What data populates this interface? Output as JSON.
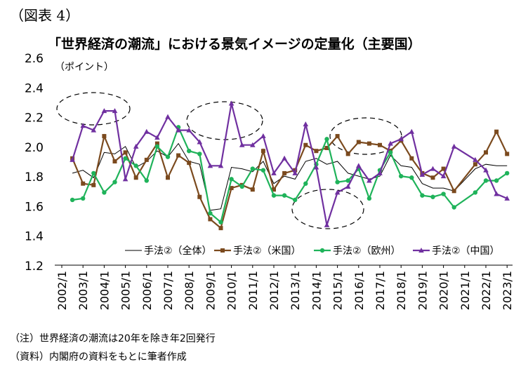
{
  "figure_label": "（図表 4）",
  "notes": {
    "note1": "（注）世界経済の潮流は20年を除き年2回発行",
    "note2": "（資料）内閣府の資料をもとに筆者作成"
  },
  "chart_data": {
    "type": "line",
    "title": "「世界経済の潮流」における景気イメージの定量化（主要国）",
    "ylabel": "（ポイント）",
    "xlabel": "",
    "ylim": [
      1.2,
      2.6
    ],
    "yticks": [
      "1.2",
      "1.4",
      "1.6",
      "1.8",
      "2.0",
      "2.2",
      "2.4",
      "2.6"
    ],
    "categories": [
      "2002/1",
      "2003/1",
      "2004/1",
      "2005/1",
      "2006/1",
      "2007/1",
      "2008/1",
      "2009/1",
      "2010/1",
      "2011/1",
      "2012/1",
      "2013/1",
      "2014/1",
      "2015/1",
      "2016/1",
      "2017/1",
      "2018/1",
      "2019/1",
      "2020/1",
      "2021/1",
      "2022/1",
      "2023/1"
    ],
    "grid": false,
    "legend_position": "bottom",
    "series": [
      {
        "name": "手法②（全体）",
        "color": "#000000",
        "marker": "none",
        "x": [
          2002.5,
          2003.0,
          2003.5,
          2004.0,
          2004.5,
          2005.0,
          2005.5,
          2006.0,
          2006.5,
          2007.0,
          2007.5,
          2008.0,
          2008.5,
          2009.0,
          2009.5,
          2010.0,
          2010.5,
          2011.0,
          2011.5,
          2012.0,
          2012.5,
          2013.0,
          2013.5,
          2014.0,
          2014.5,
          2015.0,
          2015.5,
          2016.0,
          2016.5,
          2017.0,
          2017.5,
          2018.0,
          2018.5,
          2019.0,
          2019.5,
          2020.0,
          2020.5,
          2021.5,
          2022.0,
          2022.5,
          2023.0
        ],
        "y": [
          1.82,
          1.84,
          1.79,
          1.96,
          1.95,
          2.0,
          1.86,
          1.9,
          1.97,
          1.93,
          2.02,
          1.9,
          1.88,
          1.57,
          1.58,
          1.86,
          1.85,
          1.83,
          1.9,
          1.75,
          1.8,
          1.78,
          1.9,
          1.92,
          1.88,
          1.9,
          1.82,
          1.8,
          1.78,
          1.8,
          1.94,
          1.87,
          1.86,
          1.75,
          1.72,
          1.72,
          1.7,
          1.85,
          1.88,
          1.87,
          1.87
        ]
      },
      {
        "name": "手法②（米国）",
        "color": "#7b4a1e",
        "marker": "square",
        "x": [
          2002.5,
          2003.0,
          2003.5,
          2004.0,
          2004.5,
          2005.0,
          2005.5,
          2006.0,
          2006.5,
          2007.0,
          2007.5,
          2008.0,
          2008.5,
          2009.0,
          2009.5,
          2010.0,
          2010.5,
          2011.0,
          2011.5,
          2012.0,
          2012.5,
          2013.0,
          2013.5,
          2014.0,
          2014.5,
          2015.0,
          2015.5,
          2016.0,
          2016.5,
          2017.0,
          2017.5,
          2018.0,
          2018.5,
          2019.0,
          2019.5,
          2020.0,
          2020.5,
          2021.5,
          2022.0,
          2022.5,
          2023.0
        ],
        "y": [
          1.92,
          1.75,
          1.74,
          2.07,
          1.9,
          1.96,
          1.79,
          1.91,
          2.02,
          1.79,
          1.94,
          1.89,
          1.66,
          1.51,
          1.45,
          1.72,
          1.74,
          1.71,
          1.97,
          1.71,
          1.82,
          1.84,
          2.01,
          1.97,
          1.99,
          2.07,
          1.95,
          2.03,
          2.02,
          2.01,
          1.97,
          2.04,
          1.92,
          1.82,
          1.79,
          1.85,
          1.7,
          1.88,
          1.96,
          2.1,
          1.95
        ]
      },
      {
        "name": "手法②（欧州）",
        "color": "#1fb35a",
        "marker": "circle",
        "x": [
          2002.5,
          2003.0,
          2003.5,
          2004.0,
          2004.5,
          2005.0,
          2005.5,
          2006.0,
          2006.5,
          2007.0,
          2007.5,
          2008.0,
          2008.5,
          2009.0,
          2009.5,
          2010.0,
          2010.5,
          2011.0,
          2011.5,
          2012.0,
          2012.5,
          2013.0,
          2013.5,
          2014.0,
          2014.5,
          2015.0,
          2015.5,
          2016.0,
          2016.5,
          2017.0,
          2017.5,
          2018.0,
          2018.5,
          2019.0,
          2019.5,
          2020.0,
          2020.5,
          2021.5,
          2022.0,
          2022.5,
          2023.0
        ],
        "y": [
          1.64,
          1.65,
          1.82,
          1.69,
          1.76,
          1.92,
          1.87,
          1.77,
          2.0,
          1.93,
          2.13,
          1.97,
          1.95,
          1.55,
          1.49,
          1.78,
          1.73,
          1.85,
          1.84,
          1.67,
          1.67,
          1.64,
          1.75,
          1.88,
          2.05,
          1.76,
          1.77,
          1.85,
          1.65,
          1.84,
          1.96,
          1.8,
          1.79,
          1.67,
          1.66,
          1.68,
          1.59,
          1.69,
          1.77,
          1.77,
          1.82
        ]
      },
      {
        "name": "手法②（中国）",
        "color": "#7030a0",
        "marker": "triangle",
        "x": [
          2002.5,
          2003.0,
          2003.5,
          2004.0,
          2004.5,
          2005.0,
          2005.5,
          2006.0,
          2006.5,
          2007.0,
          2007.5,
          2008.0,
          2008.5,
          2009.0,
          2009.5,
          2010.0,
          2010.5,
          2011.0,
          2011.5,
          2012.0,
          2012.5,
          2013.0,
          2013.5,
          2014.0,
          2014.5,
          2015.0,
          2015.5,
          2016.0,
          2016.5,
          2017.0,
          2017.5,
          2018.0,
          2018.5,
          2019.0,
          2019.5,
          2020.0,
          2020.5,
          2021.5,
          2022.0,
          2022.5,
          2023.0
        ],
        "y": [
          1.91,
          2.14,
          2.11,
          2.24,
          2.24,
          1.78,
          2.0,
          2.1,
          2.06,
          2.2,
          2.11,
          2.11,
          2.03,
          1.87,
          1.87,
          2.29,
          2.01,
          2.01,
          2.07,
          1.82,
          1.92,
          1.82,
          2.15,
          1.86,
          1.47,
          1.69,
          1.73,
          1.87,
          1.77,
          1.82,
          2.02,
          2.05,
          2.1,
          1.81,
          1.85,
          1.8,
          2.0,
          1.91,
          1.84,
          1.68,
          1.65
        ]
      }
    ]
  }
}
